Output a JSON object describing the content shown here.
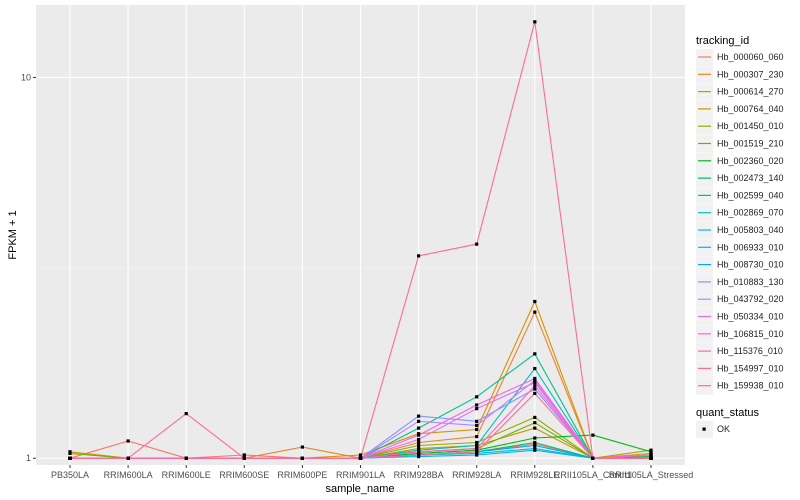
{
  "chart_data": {
    "type": "line",
    "xlabel": "sample_name",
    "ylabel": "FPKM + 1",
    "y_scale": "log10",
    "ylim": [
      0.96,
      15.5
    ],
    "y_ticks": [
      1,
      10
    ],
    "categories": [
      "PB350LA",
      "RRIM600LA",
      "RRIM600LE",
      "RRIM600SE",
      "RRIM600PE",
      "RRIM901LA",
      "RRIM928BA",
      "RRIM928LA",
      "RRIM928LE",
      "RRII105LA_Control",
      "RRII105LA_Stressed"
    ],
    "legend_title": "tracking_id",
    "series": [
      {
        "name": "Hb_000060_060",
        "color": "#F8766D",
        "values": [
          1.0,
          1.11,
          1.0,
          1.02,
          1.0,
          1.0,
          1.02,
          1.04,
          1.09,
          1.0,
          1.02
        ]
      },
      {
        "name": "Hb_000307_230",
        "color": "#E9842C",
        "values": [
          1.0,
          1.0,
          1.0,
          1.0,
          1.07,
          1.0,
          1.1,
          1.14,
          2.42,
          1.0,
          1.03
        ]
      },
      {
        "name": "Hb_000614_270",
        "color": "#D69100",
        "values": [
          1.04,
          1.0,
          1.0,
          1.0,
          1.0,
          1.02,
          1.16,
          1.19,
          2.58,
          1.0,
          1.01
        ]
      },
      {
        "name": "Hb_000764_040",
        "color": "#BC9D00",
        "values": [
          1.0,
          1.0,
          1.0,
          1.0,
          1.0,
          1.0,
          1.06,
          1.08,
          1.2,
          1.0,
          1.05
        ]
      },
      {
        "name": "Hb_001450_010",
        "color": "#9CA700",
        "values": [
          1.0,
          1.0,
          1.0,
          1.0,
          1.0,
          1.0,
          1.08,
          1.1,
          1.28,
          1.0,
          1.02
        ]
      },
      {
        "name": "Hb_001519_210",
        "color": "#6FB000",
        "values": [
          1.03,
          1.0,
          1.0,
          1.0,
          1.0,
          1.0,
          1.04,
          1.06,
          1.24,
          1.0,
          1.0
        ]
      },
      {
        "name": "Hb_002360_020",
        "color": "#00B813",
        "values": [
          1.0,
          1.0,
          1.0,
          1.0,
          1.0,
          1.0,
          1.03,
          1.05,
          1.13,
          1.15,
          1.04
        ]
      },
      {
        "name": "Hb_002473_140",
        "color": "#00BD61",
        "values": [
          1.0,
          1.0,
          1.0,
          1.0,
          1.0,
          1.0,
          1.02,
          1.04,
          1.1,
          1.0,
          1.01
        ]
      },
      {
        "name": "Hb_002599_040",
        "color": "#00C08E",
        "values": [
          1.0,
          1.0,
          1.0,
          1.0,
          1.0,
          1.0,
          1.2,
          1.45,
          1.88,
          1.0,
          1.0
        ]
      },
      {
        "name": "Hb_002869_070",
        "color": "#00C0B4",
        "values": [
          1.0,
          1.0,
          1.0,
          1.0,
          1.0,
          1.0,
          1.05,
          1.08,
          1.72,
          1.0,
          1.0
        ]
      },
      {
        "name": "Hb_005803_040",
        "color": "#00BDD4",
        "values": [
          1.0,
          1.0,
          1.0,
          1.0,
          1.0,
          1.0,
          1.02,
          1.03,
          1.06,
          1.0,
          1.0
        ]
      },
      {
        "name": "Hb_006933_010",
        "color": "#00B5EE",
        "values": [
          1.0,
          1.0,
          1.0,
          1.0,
          1.0,
          1.0,
          1.01,
          1.02,
          1.05,
          1.0,
          1.0
        ]
      },
      {
        "name": "Hb_008730_010",
        "color": "#00A7FF",
        "values": [
          1.0,
          1.0,
          1.0,
          1.0,
          1.0,
          1.0,
          1.02,
          1.04,
          1.08,
          1.0,
          1.0
        ]
      },
      {
        "name": "Hb_010883_130",
        "color": "#7F96FF",
        "values": [
          1.0,
          1.0,
          1.0,
          1.0,
          1.0,
          1.0,
          1.29,
          1.25,
          1.52,
          1.0,
          1.0
        ]
      },
      {
        "name": "Hb_043792_020",
        "color": "#BC81FF",
        "values": [
          1.0,
          1.0,
          1.0,
          1.0,
          1.0,
          1.0,
          1.25,
          1.22,
          1.6,
          1.0,
          1.0
        ]
      },
      {
        "name": "Hb_050334_010",
        "color": "#E26EF7",
        "values": [
          1.0,
          1.0,
          1.0,
          1.0,
          1.0,
          1.0,
          1.12,
          1.35,
          1.58,
          1.0,
          1.0
        ]
      },
      {
        "name": "Hb_106815_010",
        "color": "#F863DF",
        "values": [
          1.0,
          1.0,
          1.0,
          1.0,
          1.0,
          1.0,
          1.15,
          1.38,
          1.62,
          1.0,
          1.02
        ]
      },
      {
        "name": "Hb_115376_010",
        "color": "#FF62BF",
        "values": [
          1.0,
          1.0,
          1.0,
          1.0,
          1.0,
          1.0,
          1.04,
          1.06,
          1.55,
          1.0,
          1.0
        ]
      },
      {
        "name": "Hb_154997_010",
        "color": "#FF6A9A",
        "values": [
          1.0,
          1.0,
          1.0,
          1.0,
          1.0,
          1.0,
          1.02,
          1.04,
          1.48,
          1.0,
          1.0
        ]
      },
      {
        "name": "Hb_159938_010",
        "color": "#FF6C91",
        "values": [
          1.0,
          1.0,
          1.31,
          1.0,
          1.0,
          1.0,
          3.4,
          3.65,
          14.0,
          1.0,
          1.0
        ]
      }
    ],
    "shape_legend": {
      "title": "quant_status",
      "entries": [
        "OK"
      ]
    },
    "grid": true
  }
}
